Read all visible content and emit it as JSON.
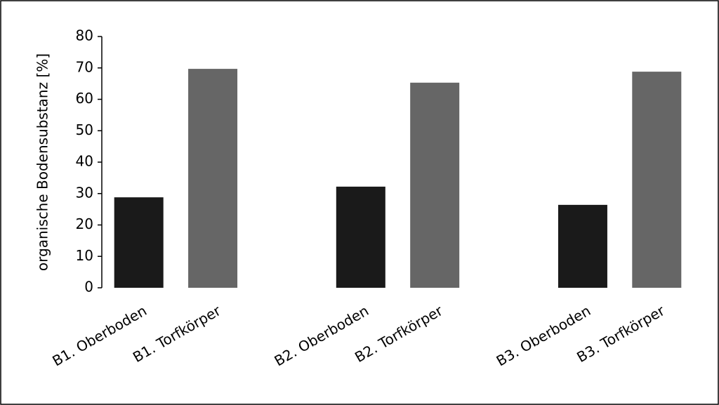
{
  "chart_data": {
    "type": "bar",
    "y_label": "organische Bodensubstanz [%]",
    "categories": [
      "B1. Oberboden",
      "B1. Torfkörper",
      null,
      "B2. Oberboden",
      "B2. Torfkörper",
      null,
      "B3. Oberboden",
      "B3. Torfkörper"
    ],
    "values": [
      28.8,
      69.7,
      null,
      32.2,
      65.3,
      null,
      26.4,
      68.8
    ],
    "colors": [
      "#1a1a1a",
      "#666666",
      null,
      "#1a1a1a",
      "#666666",
      null,
      "#1a1a1a",
      "#666666"
    ],
    "ylim": [
      0,
      80
    ],
    "yticks": [
      0,
      10,
      20,
      30,
      40,
      50,
      60,
      70,
      80
    ],
    "grid": false
  }
}
